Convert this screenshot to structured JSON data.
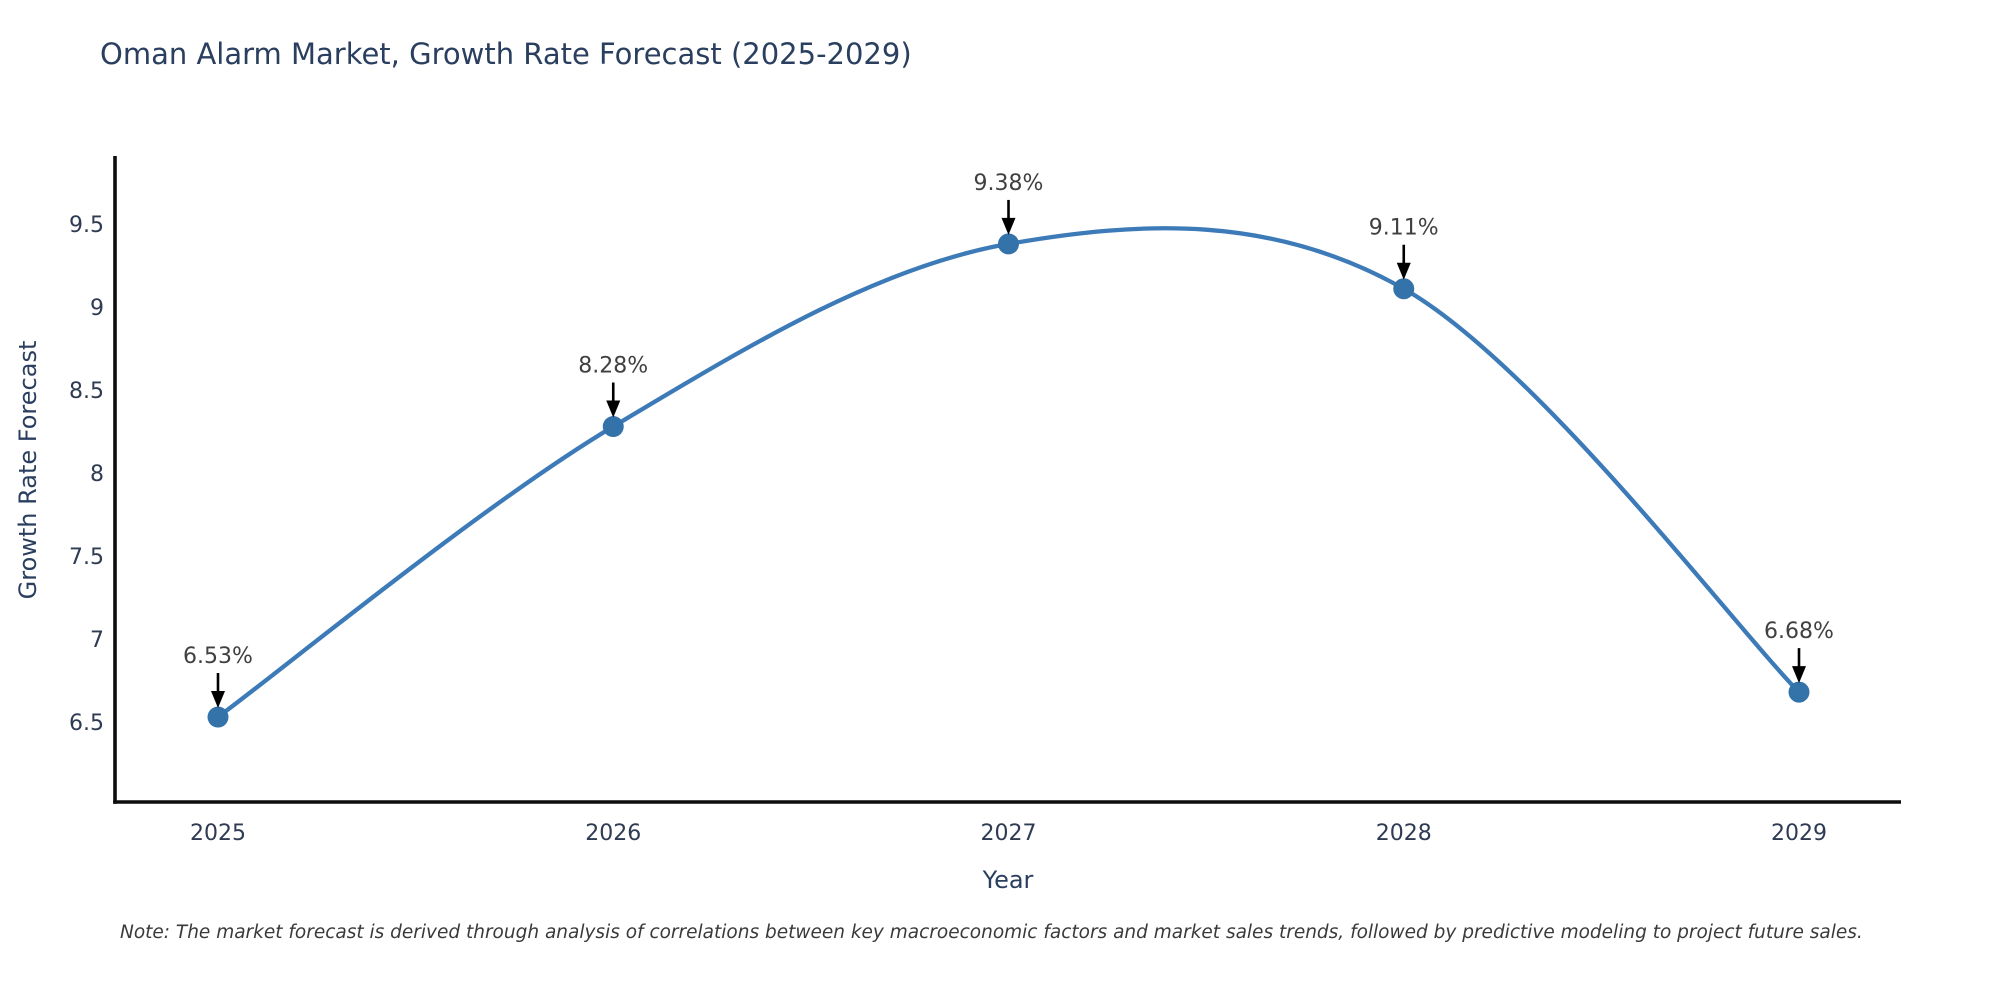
{
  "title": "Oman Alarm Market, Growth Rate Forecast (2025-2029)",
  "note": "Note: The market forecast is derived through analysis of correlations between key macroeconomic factors and market sales trends, followed by predictive modeling to project future sales.",
  "colors": {
    "title_text": "#2a3f5f",
    "tick_text": "#2e3b52",
    "axis_line": "#0d0d0d",
    "series_line": "#3c7ab8",
    "marker_fill": "#3472aa",
    "annotation_text": "#404040",
    "arrow": "#000000",
    "note_text": "#3a3a3a"
  },
  "chart_data": {
    "type": "line",
    "title": "Oman Alarm Market, Growth Rate Forecast (2025-2029)",
    "xlabel": "Year",
    "ylabel": "Growth Rate Forecast",
    "x": [
      2025,
      2026,
      2027,
      2028,
      2029
    ],
    "values": [
      6.53,
      8.28,
      9.38,
      9.11,
      6.68
    ],
    "point_labels": [
      "6.53%",
      "8.28%",
      "9.38%",
      "9.11%",
      "6.68%"
    ],
    "xticks": [
      "2025",
      "2026",
      "2027",
      "2028",
      "2029"
    ],
    "yticks": [
      6.5,
      7,
      7.5,
      8,
      8.5,
      9,
      9.5
    ],
    "ylim": [
      6.0,
      9.9
    ],
    "xlim": [
      2024.74,
      2029.26
    ],
    "line_shape": "spline",
    "grid": false,
    "legend_position": "none",
    "annotation_style": "value label above point with downward black arrow"
  }
}
